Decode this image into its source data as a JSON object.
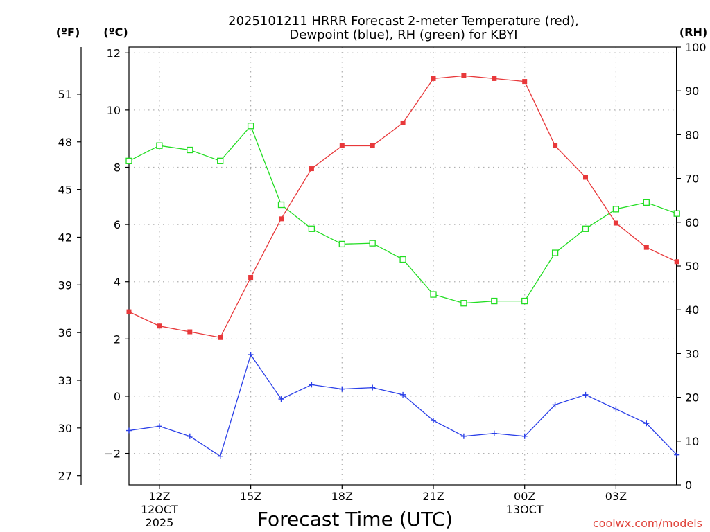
{
  "chart_data": {
    "type": "line",
    "title_line1": "2025101211 HRRR Forecast 2-meter Temperature (red),",
    "title_line2": "Dewpoint (blue), RH (green) for KBYI",
    "xlabel": "Forecast Time (UTC)",
    "credit": "coolwx.com/models",
    "unit_labels": {
      "fahrenheit": "(ºF)",
      "celsius": "(ºC)",
      "rh": "(RH)"
    },
    "x": [
      "11Z",
      "12Z",
      "13Z",
      "14Z",
      "15Z",
      "16Z",
      "17Z",
      "18Z",
      "19Z",
      "20Z",
      "21Z",
      "22Z",
      "23Z",
      "00Z",
      "01Z",
      "02Z",
      "03Z",
      "04Z",
      "05Z"
    ],
    "x_ticks": [
      {
        "index": 1,
        "lines": [
          "12Z",
          "12OCT",
          "2025"
        ]
      },
      {
        "index": 4,
        "lines": [
          "15Z"
        ]
      },
      {
        "index": 7,
        "lines": [
          "18Z"
        ]
      },
      {
        "index": 10,
        "lines": [
          "21Z"
        ]
      },
      {
        "index": 13,
        "lines": [
          "00Z",
          "13OCT"
        ]
      },
      {
        "index": 16,
        "lines": [
          "03Z"
        ]
      }
    ],
    "y_celsius": {
      "range": [
        -3.1,
        12.2
      ],
      "ticks": [
        "12",
        "10",
        "8",
        "6",
        "4",
        "2",
        "0",
        "−2"
      ]
    },
    "y_fahrenheit": {
      "range": [
        26.42,
        53.96
      ],
      "ticks": [
        "51",
        "48",
        "45",
        "42",
        "39",
        "36",
        "33",
        "30",
        "27"
      ]
    },
    "y_rh": {
      "range": [
        0,
        100
      ],
      "ticks": [
        "100",
        "90",
        "80",
        "70",
        "60",
        "50",
        "40",
        "30",
        "20",
        "10",
        "0"
      ]
    },
    "series": [
      {
        "name": "Temperature",
        "axis": "celsius",
        "color": "#e8383a",
        "marker": "filled-square",
        "values": [
          2.95,
          2.45,
          2.25,
          2.05,
          4.15,
          6.2,
          7.95,
          8.75,
          8.75,
          9.55,
          11.1,
          11.2,
          11.1,
          11.0,
          8.75,
          7.65,
          6.05,
          5.2,
          4.7
        ]
      },
      {
        "name": "Dewpoint",
        "axis": "celsius",
        "color": "#2a3fe8",
        "marker": "plus",
        "values": [
          -1.2,
          -1.05,
          -1.4,
          -2.1,
          1.45,
          -0.1,
          0.4,
          0.25,
          0.3,
          0.05,
          -0.85,
          -1.4,
          -1.3,
          -1.4,
          -0.3,
          0.05,
          -0.45,
          -0.95,
          -2.05
        ]
      },
      {
        "name": "RH",
        "axis": "rh",
        "color": "#22dd22",
        "marker": "open-square",
        "values": [
          74,
          77.5,
          76.5,
          74,
          82,
          64,
          58.5,
          55,
          55.2,
          51.5,
          43.5,
          41.5,
          42,
          42,
          53,
          58.5,
          63,
          64.5,
          62
        ]
      }
    ],
    "grid": true
  }
}
